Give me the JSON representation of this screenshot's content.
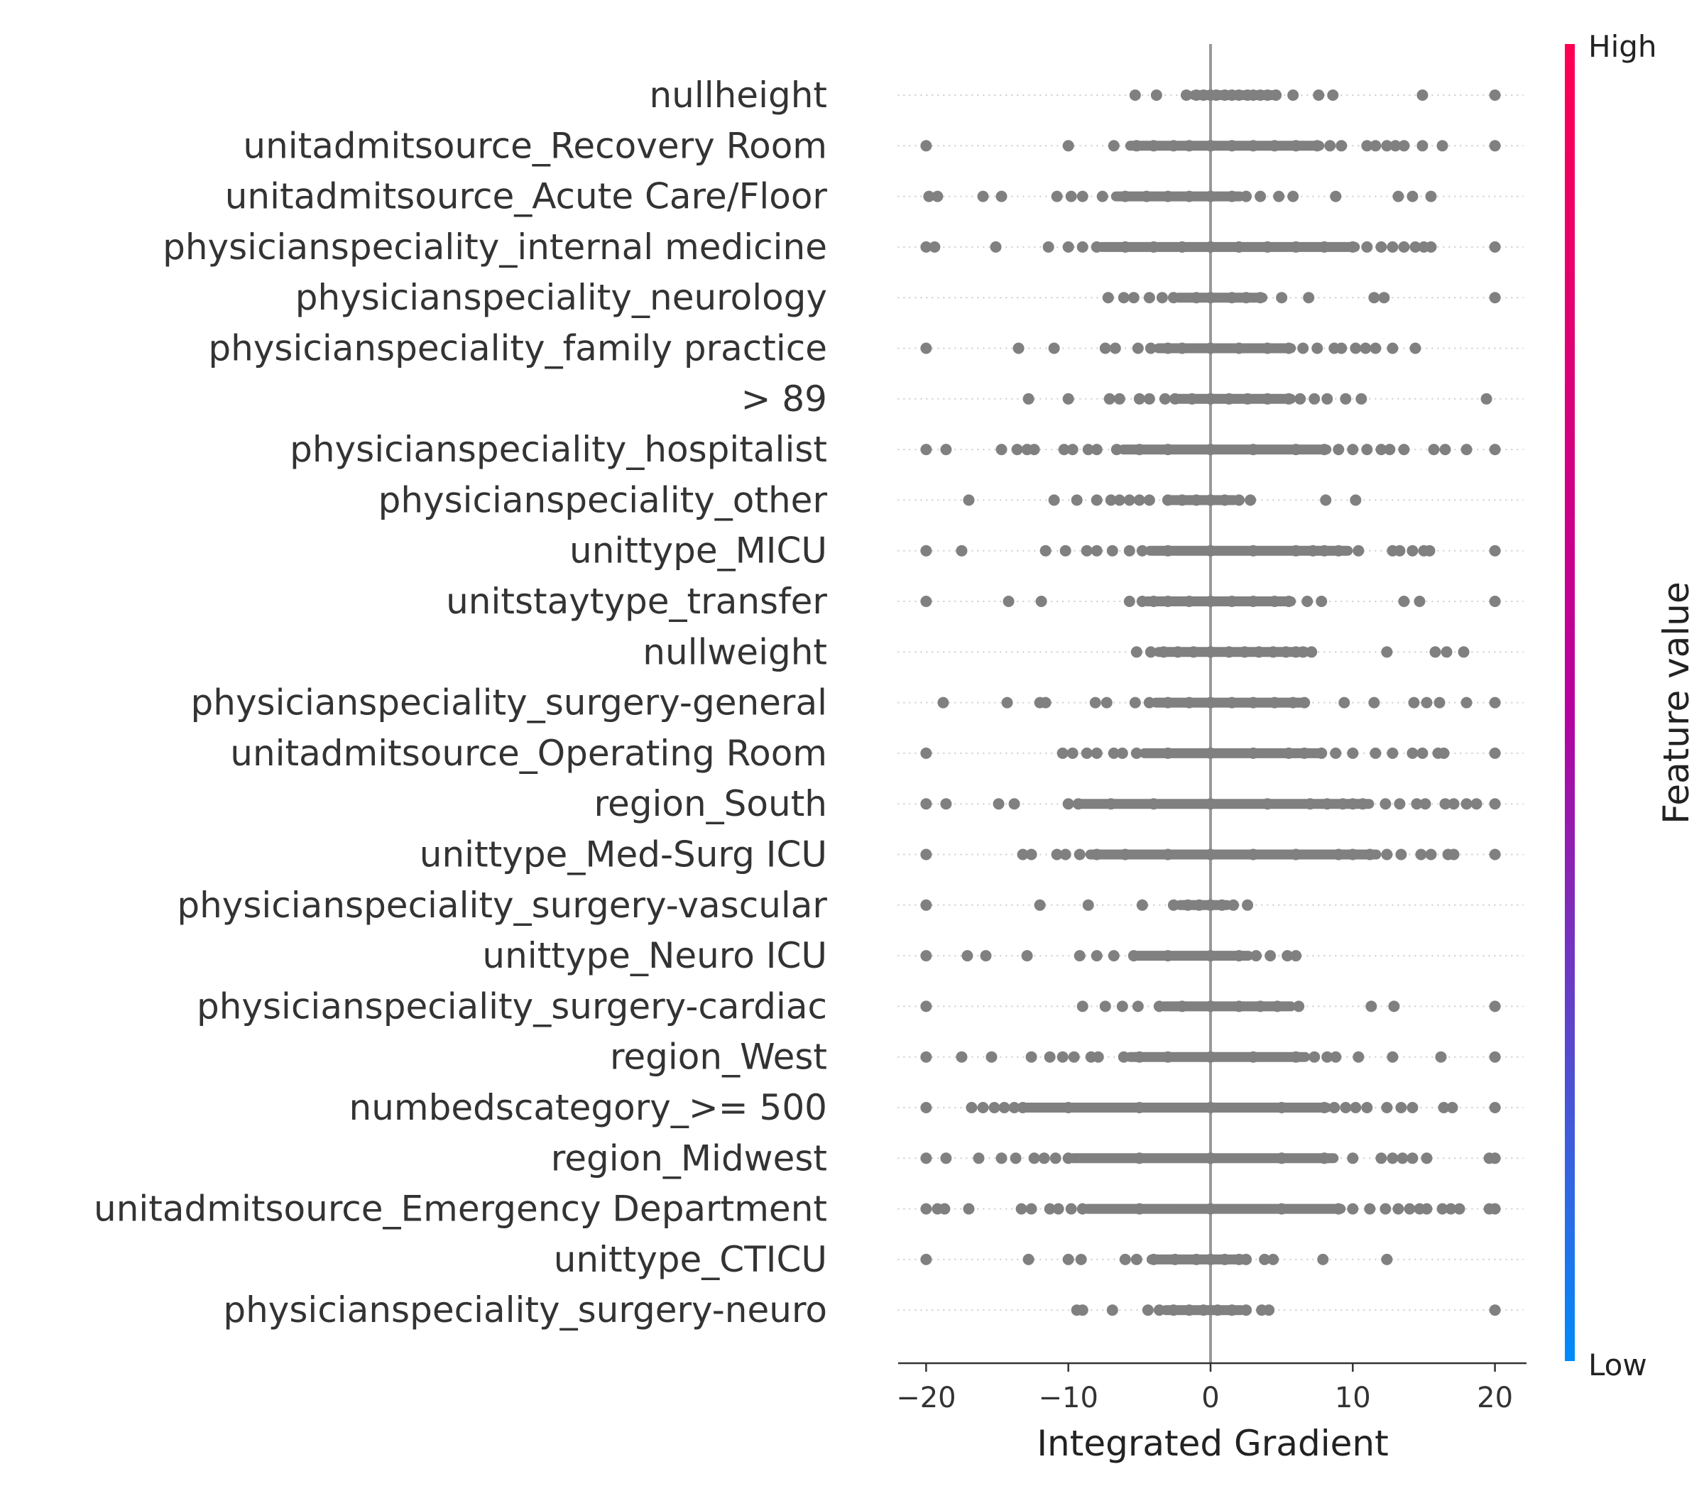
{
  "chart_data": {
    "type": "scatter",
    "xlabel": "Integrated Gradient",
    "xlim": [
      -22,
      22
    ],
    "xticks": [
      {
        "value": -20,
        "label": "−20"
      },
      {
        "value": -10,
        "label": "−10"
      },
      {
        "value": 0,
        "label": "0"
      },
      {
        "value": 10,
        "label": "10"
      },
      {
        "value": 20,
        "label": "20"
      }
    ],
    "point_color": "#808080",
    "zero_line_color": "#999999",
    "colorbar": {
      "label": "Feature value",
      "high_label": "High",
      "low_label": "Low",
      "high_color": "#ff0052",
      "low_color": "#008bfb"
    },
    "features": [
      {
        "name": "nullheight",
        "points": [
          -5.3,
          -3.8,
          -1.7,
          -1,
          -0.5,
          0,
          0.4,
          1,
          1.5,
          2,
          2.6,
          3,
          3.5,
          4,
          4.6,
          5.8,
          7.6,
          8.6,
          14.9,
          20
        ],
        "dense": [
          [
            -1.5,
            4.8
          ]
        ]
      },
      {
        "name": "unitadmitsource_Recovery Room",
        "points": [
          -20,
          -10,
          -6.8,
          -5.2,
          -4,
          -2.6,
          -1.5,
          0,
          1.5,
          3,
          4.5,
          6,
          7.5,
          8.4,
          9.2,
          11,
          11.6,
          12.4,
          13,
          13.6,
          14.9,
          16.3,
          20
        ],
        "dense": [
          [
            -6,
            8
          ]
        ]
      },
      {
        "name": "unitadmitsource_Acute Care/Floor",
        "points": [
          -19.8,
          -19.2,
          -16,
          -14.7,
          -10.8,
          -9.8,
          -9,
          -7.6,
          -6,
          -4.5,
          -3,
          -1.5,
          0,
          1.5,
          2.5,
          3.5,
          4.8,
          5.8,
          8.8,
          13.2,
          14.2,
          15.5
        ],
        "dense": [
          [
            -7,
            2.4
          ]
        ]
      },
      {
        "name": "physicianspeciality_internal medicine",
        "points": [
          -20,
          -19.4,
          -15.1,
          -11.4,
          -10,
          -9,
          -8,
          -6,
          -4,
          -2,
          0,
          2,
          4,
          6,
          8,
          10,
          11,
          12,
          12.8,
          13.6,
          14.4,
          15,
          15.5,
          20
        ],
        "dense": [
          [
            -8,
            10.5
          ]
        ]
      },
      {
        "name": "physicianspeciality_neurology",
        "points": [
          -7.2,
          -6.1,
          -5.4,
          -4.3,
          -3.4,
          -2.6,
          -1,
          0,
          1.5,
          2.5,
          3.5,
          5,
          6.9,
          11.5,
          12.2,
          20
        ],
        "dense": [
          [
            -2.6,
            4
          ]
        ]
      },
      {
        "name": "physicianspeciality_family practice",
        "points": [
          -20,
          -13.5,
          -11,
          -7.4,
          -6.7,
          -5.1,
          -4.2,
          -3,
          -2,
          0,
          2,
          4,
          5.5,
          6.5,
          7.5,
          8.7,
          9.2,
          10.2,
          10.9,
          11.6,
          12.8,
          14.4
        ],
        "dense": [
          [
            -4,
            6
          ]
        ]
      },
      {
        "name": "> 89",
        "points": [
          -12.8,
          -10,
          -7.1,
          -6.4,
          -5,
          -4.3,
          -3.2,
          -2.5,
          -1.3,
          0,
          1.3,
          2.6,
          4,
          5.5,
          6.3,
          7.3,
          8.2,
          9.5,
          10.6,
          19.4
        ],
        "dense": [
          [
            -2.8,
            6
          ]
        ]
      },
      {
        "name": "physicianspeciality_hospitalist",
        "points": [
          -20,
          -18.6,
          -14.7,
          -13.6,
          -12.9,
          -12.4,
          -10.3,
          -9.7,
          -8.6,
          -8,
          -6.6,
          -5,
          -3,
          0,
          3,
          6,
          8,
          9,
          10,
          11,
          12,
          12.6,
          13.6,
          15.7,
          16.5,
          18,
          20
        ],
        "dense": [
          [
            -6.5,
            8.5
          ]
        ]
      },
      {
        "name": "physicianspeciality_other",
        "points": [
          -17,
          -11,
          -9.4,
          -8,
          -7,
          -6.4,
          -5.7,
          -5,
          -4.3,
          -3,
          -2,
          -1,
          0,
          1,
          2,
          2.8,
          8.1,
          10.2
        ],
        "dense": [
          [
            -3.2,
            2
          ]
        ]
      },
      {
        "name": "unittype_MICU",
        "points": [
          -20,
          -17.5,
          -11.6,
          -10.2,
          -8.7,
          -8,
          -6.9,
          -5.7,
          -4.8,
          -3,
          0,
          3,
          6,
          7.2,
          8,
          9,
          10.4,
          12.8,
          13.3,
          14.2,
          15,
          15.4,
          20
        ],
        "dense": [
          [
            -4.6,
            10
          ]
        ]
      },
      {
        "name": "unitstaytype_transfer",
        "points": [
          -20,
          -14.2,
          -11.9,
          -5.7,
          -4.8,
          -4,
          -3,
          -1.5,
          0,
          1.5,
          3,
          4.5,
          5.5,
          6.8,
          7.8,
          13.6,
          14.7,
          20
        ],
        "dense": [
          [
            -4.8,
            6
          ]
        ]
      },
      {
        "name": "nullweight",
        "points": [
          -5.2,
          -4.2,
          -3.3,
          -2.3,
          -1.2,
          0,
          1.3,
          2.4,
          3.4,
          4.4,
          5.3,
          6,
          6.5,
          7.1,
          12.4,
          15.8,
          16.6,
          17.8
        ],
        "dense": [
          [
            -4,
            7
          ]
        ]
      },
      {
        "name": "physicianspeciality_surgery-general",
        "points": [
          -18.8,
          -14.3,
          -12,
          -11.6,
          -8.1,
          -7.3,
          -5.3,
          -4.3,
          -3,
          -1.5,
          0,
          1.5,
          3,
          4.5,
          5.8,
          6.6,
          9.4,
          11.5,
          14.3,
          15.2,
          16.1,
          18,
          20
        ],
        "dense": [
          [
            -4.2,
            6.7
          ]
        ]
      },
      {
        "name": "unitadmitsource_Operating Room",
        "points": [
          -20,
          -10.4,
          -9.7,
          -8.7,
          -8,
          -6.8,
          -6.2,
          -5.2,
          -3,
          0,
          3,
          5.5,
          6.6,
          7.8,
          8.8,
          10,
          11.6,
          12.8,
          14.2,
          14.9,
          16,
          16.4,
          20
        ],
        "dense": [
          [
            -5,
            8
          ]
        ]
      },
      {
        "name": "region_South",
        "points": [
          -20,
          -18.6,
          -14.9,
          -13.8,
          -10,
          -9.3,
          -7,
          -4,
          0,
          4,
          7,
          8.2,
          9.3,
          10,
          10.7,
          12.3,
          13.3,
          14.5,
          15.1,
          16.5,
          17.1,
          18,
          18.7,
          20
        ],
        "dense": [
          [
            -9.5,
            11.5
          ]
        ]
      },
      {
        "name": "unittype_Med-Surg ICU",
        "points": [
          -20,
          -13.2,
          -12.6,
          -10.8,
          -10.2,
          -9.2,
          -8,
          -6,
          -3,
          0,
          3,
          6,
          9,
          10,
          11.2,
          12.4,
          13.4,
          14.8,
          15.5,
          16.7,
          17.1,
          20
        ],
        "dense": [
          [
            -8.8,
            12
          ]
        ]
      },
      {
        "name": "physicianspeciality_surgery-vascular",
        "points": [
          -20,
          -12,
          -8.6,
          -4.8,
          -2.6,
          -1.6,
          -0.8,
          0,
          0.8,
          1.6,
          2.6
        ],
        "dense": [
          [
            -2.5,
            1.5
          ]
        ]
      },
      {
        "name": "unittype_Neuro ICU",
        "points": [
          -20,
          -17.1,
          -15.8,
          -12.9,
          -9.2,
          -8,
          -6.8,
          -5.4,
          -3,
          0,
          2,
          3.2,
          4.2,
          5.4,
          6
        ],
        "dense": [
          [
            -5.5,
            3
          ]
        ]
      },
      {
        "name": "physicianspeciality_surgery-cardiac",
        "points": [
          -20,
          -9,
          -7.4,
          -6.2,
          -5.1,
          -3.6,
          -2,
          0,
          2,
          3.5,
          4.7,
          6.2,
          11.3,
          12.9,
          20
        ],
        "dense": [
          [
            -3.6,
            6
          ]
        ]
      },
      {
        "name": "region_West",
        "points": [
          -20,
          -17.5,
          -15.4,
          -12.6,
          -11.3,
          -10.4,
          -9.6,
          -8.4,
          -7.9,
          -6.1,
          -5,
          -3,
          0,
          3,
          6,
          7.3,
          8.2,
          8.8,
          10.4,
          12.8,
          16.2,
          20
        ],
        "dense": [
          [
            -6,
            7
          ]
        ]
      },
      {
        "name": "numbedscategory_>= 500",
        "points": [
          -20,
          -16.8,
          -16,
          -15.2,
          -14.5,
          -13.8,
          -13.2,
          -10,
          -5,
          0,
          5,
          8,
          8.7,
          9.5,
          10.2,
          11,
          12.4,
          13.4,
          14.2,
          16.4,
          17,
          20
        ],
        "dense": [
          [
            -13.5,
            8.5
          ]
        ]
      },
      {
        "name": "region_Midwest",
        "points": [
          -20,
          -18.6,
          -16.3,
          -14.7,
          -13.7,
          -12.4,
          -11.7,
          -10.9,
          -10,
          -5,
          0,
          5,
          8,
          10,
          12,
          12.8,
          13.5,
          14.2,
          15.2,
          19.6,
          20
        ],
        "dense": [
          [
            -10,
            9
          ]
        ]
      },
      {
        "name": "unitadmitsource_Emergency Department",
        "points": [
          -20,
          -19.2,
          -18.7,
          -17,
          -13.3,
          -12.6,
          -11.3,
          -10.7,
          -9.8,
          -9,
          -5,
          0,
          5,
          9,
          10,
          11.2,
          12.3,
          13.2,
          14,
          14.7,
          15.2,
          16.3,
          16.9,
          17.5,
          19.6,
          20
        ],
        "dense": [
          [
            -9,
            9.5
          ]
        ]
      },
      {
        "name": "unittype_CTICU",
        "points": [
          -20,
          -12.8,
          -10,
          -9.1,
          -6,
          -5.2,
          -4,
          -2.5,
          -1,
          0,
          1,
          2,
          2.5,
          3.8,
          4.4,
          7.9,
          12.4
        ],
        "dense": [
          [
            -4.5,
            2.8
          ]
        ]
      },
      {
        "name": "physicianspeciality_surgery-neuro",
        "points": [
          -9.4,
          -9,
          -6.9,
          -4.4,
          -3.6,
          -2.6,
          -1.5,
          -0.5,
          0.5,
          1.5,
          2.5,
          3.6,
          4.1,
          20
        ],
        "dense": [
          [
            -3.5,
            2.5
          ]
        ]
      }
    ]
  }
}
